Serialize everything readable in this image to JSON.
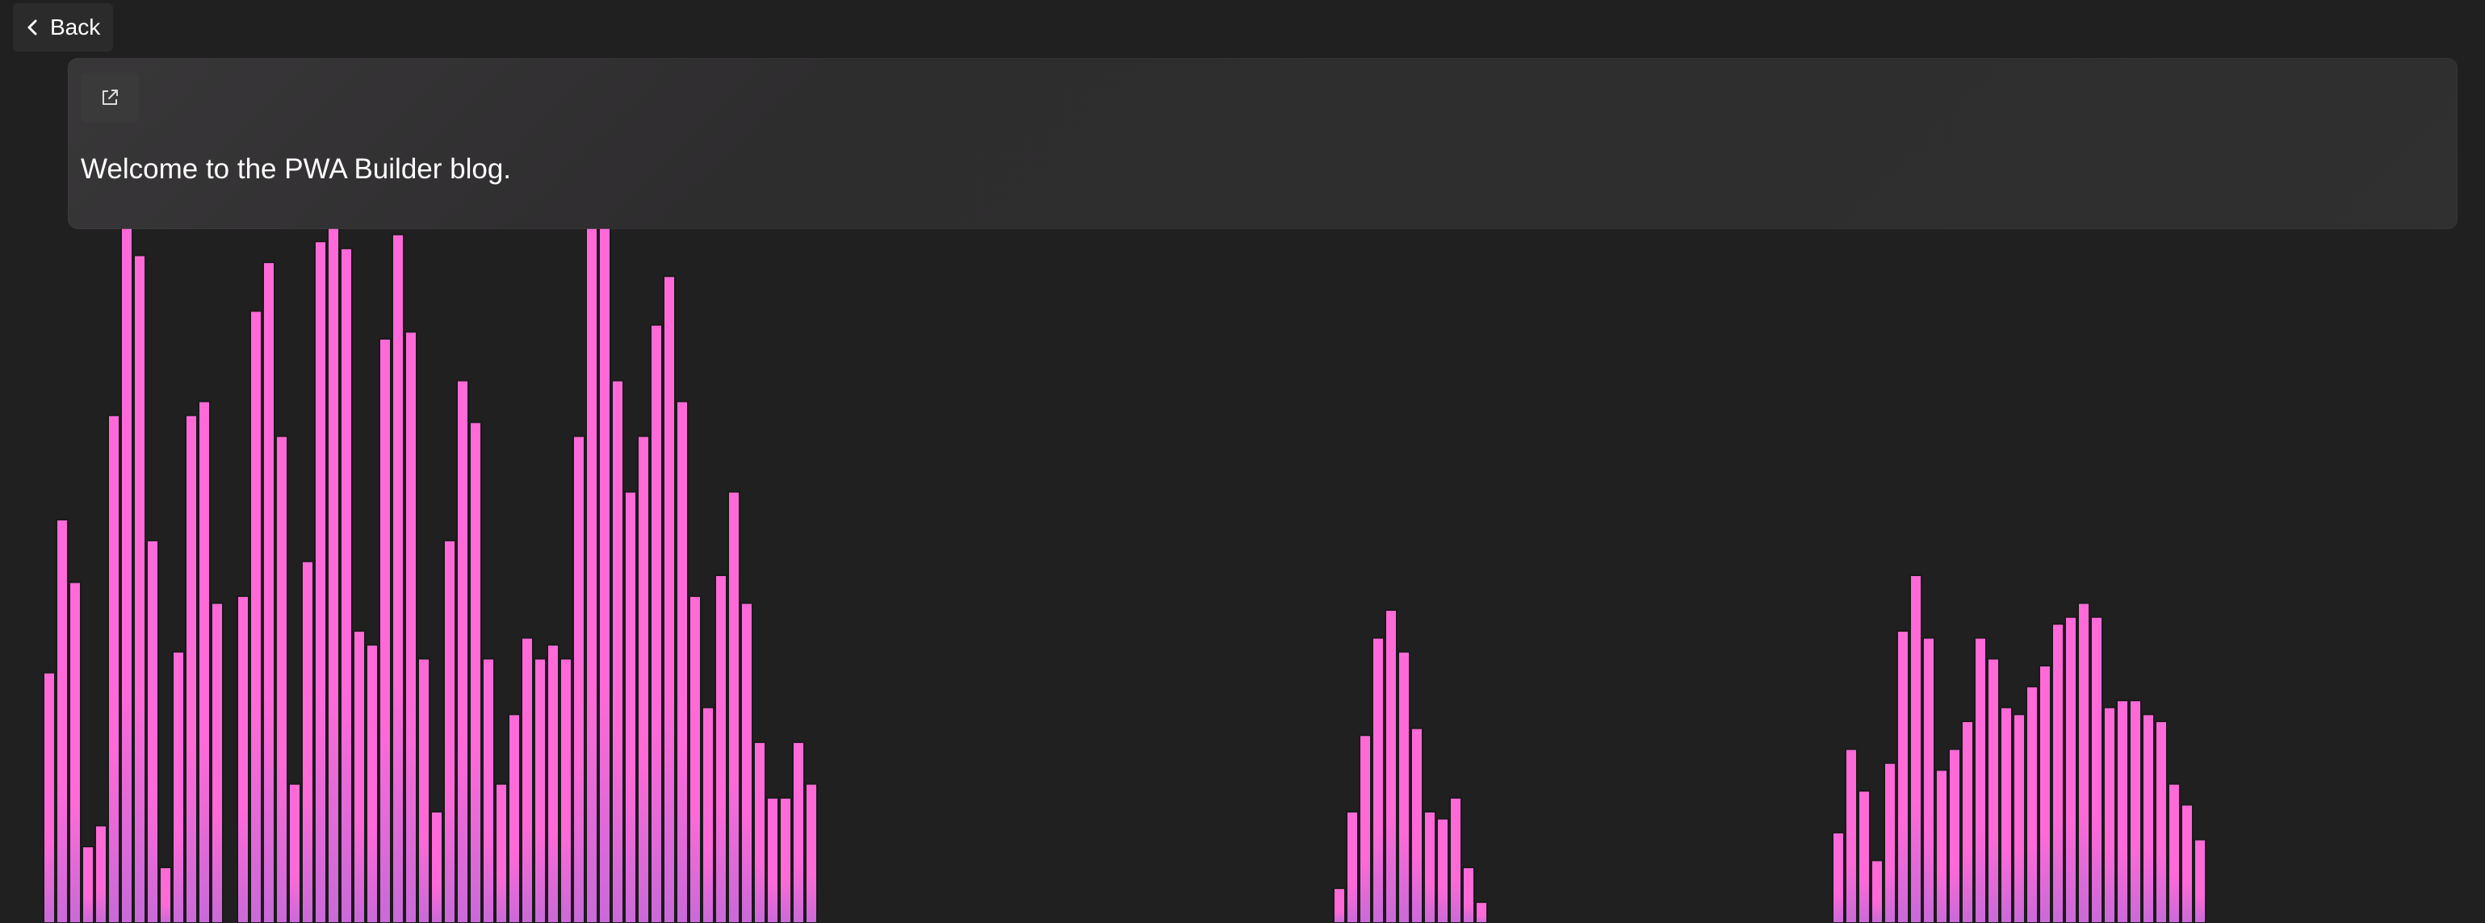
{
  "nav": {
    "back_label": "Back",
    "back_icon": "chevron-left-icon"
  },
  "card": {
    "open_icon": "open-in-new-window-icon",
    "text": "Welcome to the PWA Builder blog."
  },
  "visualizer": {
    "bar_color_top": "#ff6ad8",
    "bar_color_bottom": "#c96ad8",
    "bar_outline": "#1a1a1a",
    "groups": [
      [
        0.36,
        0.58,
        0.49,
        0.11,
        0.14,
        0.73,
        1.0,
        0.96,
        0.55,
        0.08,
        0.39,
        0.73,
        0.75,
        0.46,
        0.0,
        0.47,
        0.88,
        0.95,
        0.7,
        0.2,
        0.52,
        0.98,
        1.0,
        0.97,
        0.42,
        0.4,
        0.84,
        0.99,
        0.85,
        0.38,
        0.16,
        0.55,
        0.78,
        0.72,
        0.38,
        0.2,
        0.3,
        0.41,
        0.38,
        0.4,
        0.38,
        0.7,
        1.0,
        1.0,
        0.78,
        0.62,
        0.7,
        0.86,
        0.93,
        0.75,
        0.47,
        0.31,
        0.5,
        0.62,
        0.46,
        0.26,
        0.18,
        0.18,
        0.26,
        0.2
      ],
      [
        0.05,
        0.16,
        0.27,
        0.41,
        0.45,
        0.39,
        0.28,
        0.16,
        0.15,
        0.18,
        0.08,
        0.03
      ],
      [
        0.13,
        0.25,
        0.19,
        0.09,
        0.23,
        0.42,
        0.5,
        0.41,
        0.22,
        0.25,
        0.29,
        0.41,
        0.38,
        0.31,
        0.3,
        0.34,
        0.37,
        0.43,
        0.44,
        0.46,
        0.44,
        0.31,
        0.32,
        0.32,
        0.3,
        0.29,
        0.2,
        0.17,
        0.12
      ]
    ]
  }
}
